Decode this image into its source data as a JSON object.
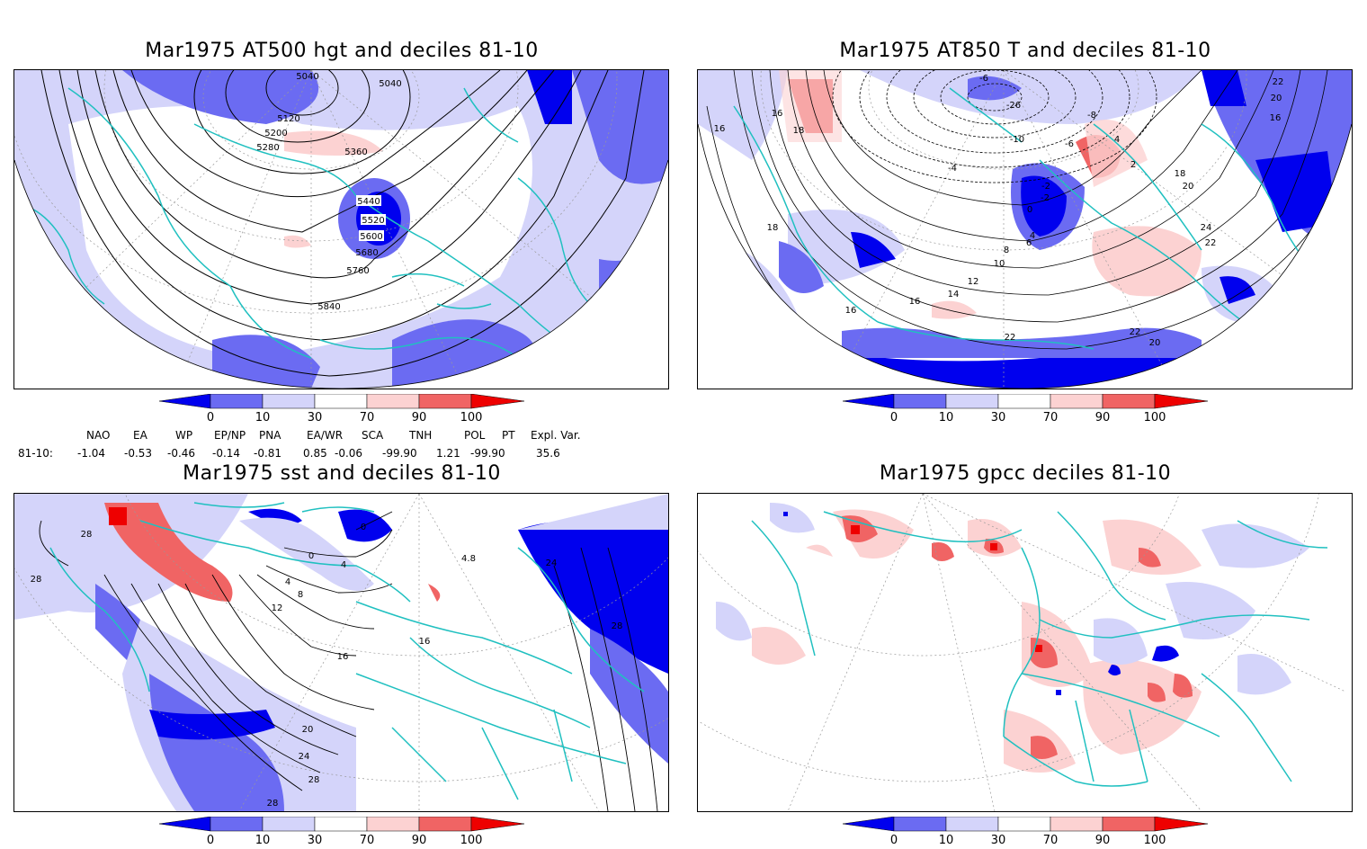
{
  "panels": {
    "top_left": {
      "title": "Mar1975 AT500 hgt and deciles 81-10",
      "contour_labels": [
        "5040",
        "5040",
        "5120",
        "5200",
        "5280",
        "5360",
        "5440",
        "5520",
        "5600",
        "5680",
        "5760",
        "5840"
      ]
    },
    "top_right": {
      "title": "Mar1975 AT850 T and deciles 81-10",
      "contour_labels": [
        "-6",
        "-26",
        "-10",
        "-8",
        "-6",
        "-4",
        "-2",
        "4",
        "2",
        "0",
        "-2",
        "4",
        "6",
        "8",
        "10",
        "12",
        "14",
        "16",
        "16",
        "18",
        "18",
        "16",
        "16",
        "20",
        "22",
        "24",
        "22",
        "22",
        "20",
        "18",
        "22",
        "20",
        "16"
      ]
    },
    "bottom_left": {
      "title": "Mar1975 sst and deciles 81-10",
      "contour_labels": [
        "28",
        "28",
        "0",
        "0",
        "4",
        "4",
        "8",
        "12",
        "16",
        "16",
        "20",
        "24",
        "28",
        "28",
        "24",
        "28",
        "4.8"
      ]
    },
    "bottom_right": {
      "title": "Mar1975 gpcc deciles 81-10"
    }
  },
  "colorbar": {
    "tick_labels": [
      "0",
      "10",
      "30",
      "70",
      "90",
      "100"
    ],
    "colors": [
      "#0000ee",
      "#6b6bf2",
      "#d4d4fa",
      "#ffffff",
      "#fcd2d2",
      "#f06464",
      "#ee0000"
    ]
  },
  "indices": {
    "headers": [
      "NAO",
      "EA",
      "WP",
      "EP/NP",
      "PNA",
      "EA/WR",
      "SCA",
      "TNH",
      "POL",
      "PT",
      "Expl. Var."
    ],
    "row_label": "81-10:",
    "values": [
      "-1.04",
      "-0.53",
      "-0.46",
      "-0.14",
      "-0.81",
      "0.85",
      "-0.06",
      "-99.90",
      "1.21",
      "-99.90",
      "35.6"
    ]
  },
  "map_colors": {
    "coast": "#20c0c0",
    "contour": "#000000",
    "grid": "#999999"
  }
}
